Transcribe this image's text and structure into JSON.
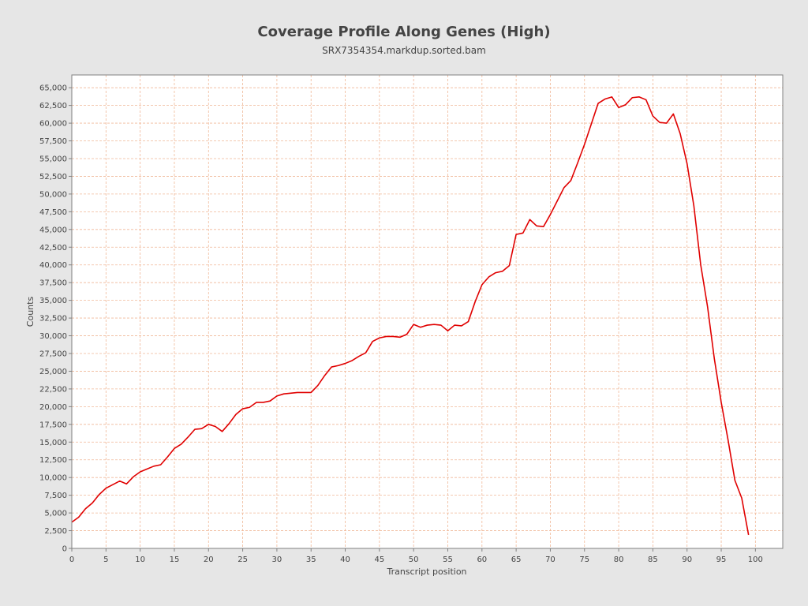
{
  "chart_data": {
    "type": "line",
    "title": "Coverage Profile Along Genes (High)",
    "subtitle": "SRX7354354.markdup.sorted.bam",
    "xlabel": "Transcript position",
    "ylabel": "Counts",
    "xlim": [
      0,
      104
    ],
    "ylim": [
      0,
      66800
    ],
    "x_ticks": [
      0,
      5,
      10,
      15,
      20,
      25,
      30,
      35,
      40,
      45,
      50,
      55,
      60,
      65,
      70,
      75,
      80,
      85,
      90,
      95,
      100
    ],
    "y_ticks": [
      0,
      2500,
      5000,
      7500,
      10000,
      12500,
      15000,
      17500,
      20000,
      22500,
      25000,
      27500,
      30000,
      32500,
      35000,
      37500,
      40000,
      42500,
      45000,
      47500,
      50000,
      52500,
      55000,
      57500,
      60000,
      62500,
      65000
    ],
    "y_tick_labels": [
      "0",
      "2,500",
      "5,000",
      "7,500",
      "10,000",
      "12,500",
      "15,000",
      "17,500",
      "20,000",
      "22,500",
      "25,000",
      "27,500",
      "30,000",
      "32,500",
      "35,000",
      "37,500",
      "40,000",
      "42,500",
      "45,000",
      "47,500",
      "50,000",
      "52,500",
      "55,000",
      "57,500",
      "60,000",
      "62,500",
      "65,000"
    ],
    "grid": true,
    "colors": {
      "line": "#e00000",
      "grid": "#f0b898",
      "plot_bg": "#ffffff",
      "axis": "#808080"
    },
    "series": [
      {
        "x": [
          0,
          1,
          2,
          3,
          4,
          5,
          6,
          7,
          8,
          9,
          10,
          11,
          12,
          13,
          14,
          15,
          16,
          17,
          18,
          19,
          20,
          21,
          22,
          23,
          24,
          25,
          26,
          27,
          28,
          29,
          30,
          31,
          32,
          33,
          34,
          35,
          36,
          37,
          38,
          39,
          40,
          41,
          42,
          43,
          44,
          45,
          46,
          47,
          48,
          49,
          50,
          51,
          52,
          53,
          54,
          55,
          56,
          57,
          58,
          59,
          60,
          61,
          62,
          63,
          64,
          65,
          66,
          67,
          68,
          69,
          70,
          71,
          72,
          73,
          74,
          75,
          76,
          77,
          78,
          79,
          80,
          81,
          82,
          83,
          84,
          85,
          86,
          87,
          88,
          89,
          90,
          91,
          92,
          93,
          94,
          95,
          96,
          97,
          98,
          99
        ],
        "values": [
          3700,
          4400,
          5600,
          6400,
          7600,
          8500,
          9000,
          9500,
          9100,
          10100,
          10800,
          11200,
          11600,
          11800,
          12900,
          14100,
          14700,
          15700,
          16800,
          16900,
          17500,
          17200,
          16500,
          17600,
          18900,
          19700,
          19900,
          20600,
          20600,
          20800,
          21500,
          21800,
          21900,
          22000,
          22000,
          22000,
          23000,
          24400,
          25600,
          25800,
          26100,
          26500,
          27100,
          27600,
          29200,
          29700,
          29900,
          29900,
          29800,
          30200,
          31600,
          31200,
          31500,
          31600,
          31500,
          30700,
          31500,
          31400,
          32000,
          34800,
          37200,
          38300,
          38900,
          39100,
          39900,
          44300,
          44500,
          46400,
          45500,
          45400,
          47100,
          49000,
          50900,
          51900,
          54400,
          57000,
          59900,
          62800,
          63400,
          63700,
          62200,
          62600,
          63600,
          63700,
          63300,
          61000,
          60100,
          60000,
          61300,
          58500,
          54300,
          48300,
          40000,
          34100,
          26700,
          20600,
          15300,
          9600,
          7100,
          1900
        ]
      }
    ]
  }
}
